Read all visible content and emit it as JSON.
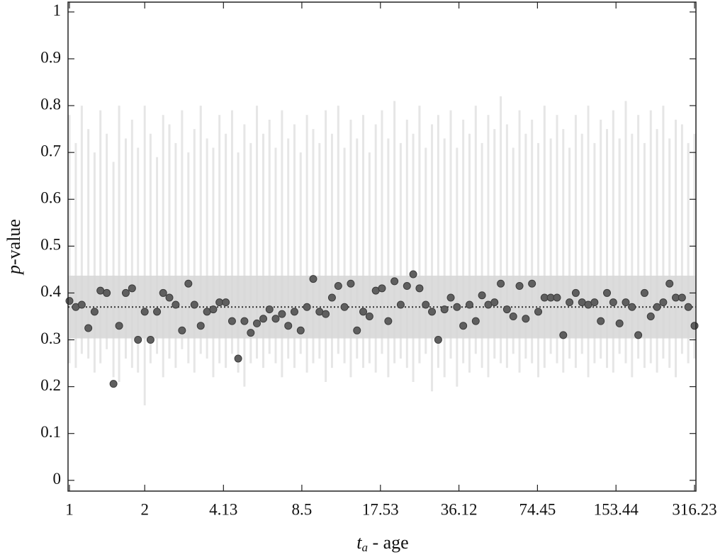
{
  "chart_data": {
    "type": "scatter",
    "xlabel": {
      "symbol": "t",
      "subscript": "a",
      "text": " - age"
    },
    "ylabel": {
      "symbol": "p",
      "text": "-value"
    },
    "xscale": "log",
    "xlim": [
      0.987,
      320.4
    ],
    "ylim": [
      -0.023,
      1.021
    ],
    "xticks": [
      1,
      2,
      4.13,
      8.5,
      17.53,
      36.12,
      74.45,
      153.44,
      316.23
    ],
    "yticks": [
      0,
      0.1,
      0.2,
      0.3,
      0.4,
      0.5,
      0.6,
      0.7,
      0.8,
      0.9,
      1
    ],
    "band": [
      0.303,
      0.437
    ],
    "band_color": "#d6d6d6",
    "mean": 0.37,
    "error_color": "#e6e6e6",
    "color": "#5f5f5f",
    "x": [
      1,
      1.06,
      1.12,
      1.19,
      1.26,
      1.33,
      1.41,
      1.5,
      1.58,
      1.68,
      1.78,
      1.88,
      2,
      2.11,
      2.24,
      2.37,
      2.51,
      2.66,
      2.82,
      2.99,
      3.16,
      3.35,
      3.55,
      3.76,
      3.98,
      4.22,
      4.47,
      4.73,
      5.01,
      5.31,
      5.62,
      5.96,
      6.31,
      6.68,
      7.08,
      7.5,
      7.94,
      8.41,
      8.91,
      9.44,
      10,
      10.59,
      11.22,
      11.89,
      12.59,
      13.34,
      14.13,
      14.96,
      15.85,
      16.79,
      17.78,
      18.84,
      19.95,
      21.13,
      22.39,
      23.71,
      25.12,
      26.61,
      28.18,
      29.85,
      31.62,
      33.5,
      35.48,
      37.58,
      39.81,
      42.17,
      44.67,
      47.32,
      50.12,
      53.09,
      56.23,
      59.57,
      63.1,
      66.83,
      70.79,
      74.99,
      79.43,
      84.14,
      89.13,
      94.41,
      100,
      105.93,
      112.2,
      118.85,
      125.89,
      133.35,
      141.25,
      149.62,
      158.49,
      167.88,
      177.83,
      188.36,
      199.53,
      211.35,
      223.87,
      237.14,
      251.19,
      266.07,
      281.84,
      298.54,
      316.23
    ],
    "values": [
      0.383,
      0.37,
      0.375,
      0.325,
      0.36,
      0.405,
      0.4,
      0.206,
      0.33,
      0.4,
      0.41,
      0.3,
      0.36,
      0.3,
      0.36,
      0.4,
      0.39,
      0.375,
      0.32,
      0.42,
      0.375,
      0.33,
      0.36,
      0.365,
      0.38,
      0.38,
      0.34,
      0.26,
      0.34,
      0.315,
      0.335,
      0.345,
      0.365,
      0.345,
      0.355,
      0.33,
      0.36,
      0.32,
      0.37,
      0.43,
      0.36,
      0.355,
      0.39,
      0.415,
      0.37,
      0.42,
      0.32,
      0.36,
      0.35,
      0.405,
      0.41,
      0.34,
      0.425,
      0.375,
      0.415,
      0.44,
      0.41,
      0.375,
      0.36,
      0.3,
      0.365,
      0.39,
      0.37,
      0.33,
      0.375,
      0.34,
      0.395,
      0.375,
      0.38,
      0.42,
      0.365,
      0.35,
      0.415,
      0.345,
      0.42,
      0.36,
      0.39,
      0.39,
      0.39,
      0.31,
      0.38,
      0.4,
      0.38,
      0.375,
      0.38,
      0.34,
      0.4,
      0.38,
      0.335,
      0.38,
      0.37,
      0.31,
      0.4,
      0.35,
      0.37,
      0.38,
      0.42,
      0.39,
      0.39,
      0.37,
      0.33
    ],
    "low": [
      0.25,
      0.24,
      0.27,
      0.26,
      0.23,
      0.25,
      0.28,
      0.22,
      0.21,
      0.26,
      0.24,
      0.23,
      0.16,
      0.25,
      0.27,
      0.22,
      0.26,
      0.24,
      0.28,
      0.25,
      0.23,
      0.27,
      0.26,
      0.22,
      0.25,
      0.24,
      0.27,
      0.23,
      0.2,
      0.25,
      0.26,
      0.24,
      0.27,
      0.25,
      0.22,
      0.26,
      0.24,
      0.27,
      0.23,
      0.25,
      0.26,
      0.21,
      0.24,
      0.27,
      0.25,
      0.22,
      0.26,
      0.24,
      0.25,
      0.23,
      0.27,
      0.22,
      0.25,
      0.26,
      0.24,
      0.21,
      0.25,
      0.27,
      0.19,
      0.24,
      0.22,
      0.26,
      0.2,
      0.25,
      0.23,
      0.27,
      0.24,
      0.22,
      0.26,
      0.25,
      0.24,
      0.27,
      0.23,
      0.26,
      0.25,
      0.22,
      0.24,
      0.27,
      0.25,
      0.23,
      0.26,
      0.24,
      0.27,
      0.22,
      0.25,
      0.26,
      0.24,
      0.23,
      0.27,
      0.25,
      0.22,
      0.26,
      0.24,
      0.25,
      0.23,
      0.26,
      0.24,
      0.22,
      0.27,
      0.25,
      0.26
    ],
    "high": [
      0.78,
      0.72,
      0.8,
      0.75,
      0.7,
      0.79,
      0.74,
      0.68,
      0.8,
      0.73,
      0.77,
      0.71,
      0.8,
      0.74,
      0.69,
      0.78,
      0.76,
      0.72,
      0.79,
      0.7,
      0.75,
      0.8,
      0.73,
      0.71,
      0.78,
      0.74,
      0.79,
      0.7,
      0.76,
      0.72,
      0.8,
      0.74,
      0.77,
      0.71,
      0.79,
      0.73,
      0.76,
      0.7,
      0.78,
      0.75,
      0.72,
      0.79,
      0.74,
      0.8,
      0.71,
      0.77,
      0.73,
      0.78,
      0.7,
      0.76,
      0.79,
      0.73,
      0.81,
      0.72,
      0.77,
      0.74,
      0.8,
      0.71,
      0.76,
      0.78,
      0.73,
      0.79,
      0.71,
      0.77,
      0.74,
      0.8,
      0.72,
      0.78,
      0.75,
      0.82,
      0.76,
      0.71,
      0.79,
      0.74,
      0.77,
      0.72,
      0.8,
      0.73,
      0.78,
      0.75,
      0.71,
      0.78,
      0.74,
      0.8,
      0.72,
      0.77,
      0.75,
      0.79,
      0.73,
      0.81,
      0.74,
      0.78,
      0.72,
      0.79,
      0.75,
      0.8,
      0.73,
      0.77,
      0.76,
      0.72,
      0.74
    ]
  }
}
